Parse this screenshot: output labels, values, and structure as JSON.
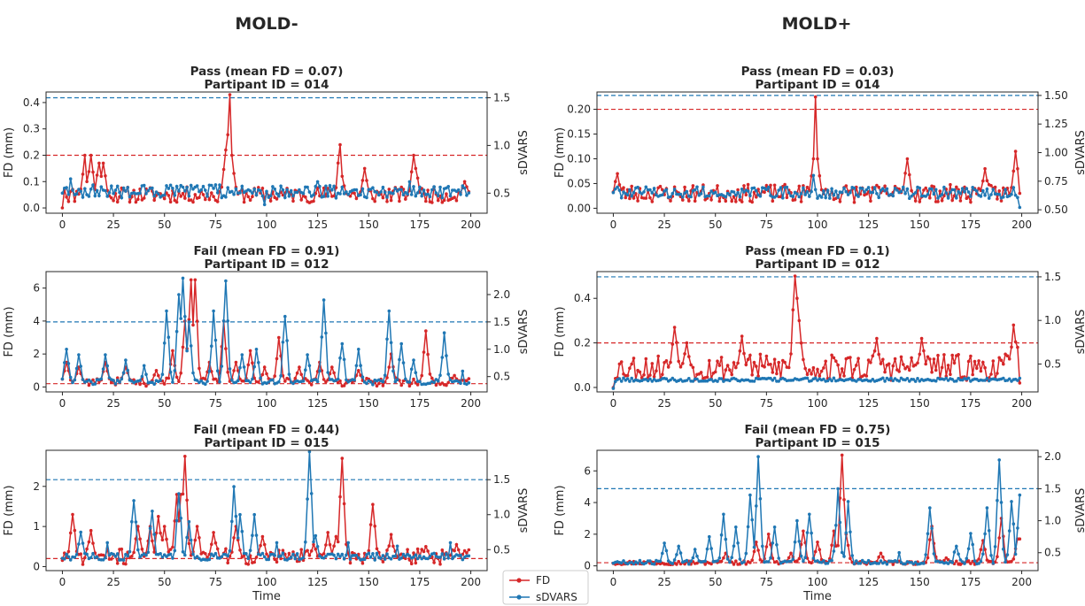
{
  "columns": [
    "MOLD-",
    "MOLD+"
  ],
  "legend": {
    "fd": "FD",
    "sdvars": "sDVARS",
    "fd_color": "#d62728",
    "sdvars_color": "#1f77b4"
  },
  "chart_data": [
    {
      "type": "line",
      "col": 0,
      "row": 0,
      "title": [
        "Pass (mean FD = 0.07)",
        "Partipant ID = 014"
      ],
      "xlabel": "",
      "ylabel": "FD (mm)",
      "y2label": "sDVARS",
      "xlim": [
        -8,
        208
      ],
      "ylim": [
        -0.02,
        0.44
      ],
      "y2lim": [
        0.29,
        1.56
      ],
      "xticks": [
        0,
        25,
        50,
        75,
        100,
        125,
        150,
        175,
        200
      ],
      "yticks": [
        0.0,
        0.1,
        0.2,
        0.3,
        0.4
      ],
      "yticklabels": [
        "0.0",
        "0.1",
        "0.2",
        "0.3",
        "0.4"
      ],
      "y2ticks": [
        0.5,
        1.0,
        1.5
      ],
      "y2ticklabels": [
        "0.5",
        "1.0",
        "1.5"
      ],
      "fd_threshold": 0.2,
      "sdvars_threshold": 1.5,
      "fd_peaks": [
        [
          0,
          0.0
        ],
        [
          1,
          0.07
        ],
        [
          11,
          0.2
        ],
        [
          12,
          0.1
        ],
        [
          14,
          0.2
        ],
        [
          18,
          0.17
        ],
        [
          20,
          0.17
        ],
        [
          80,
          0.22
        ],
        [
          82,
          0.43
        ],
        [
          83,
          0.2
        ],
        [
          136,
          0.24
        ],
        [
          137,
          0.12
        ],
        [
          148,
          0.15
        ],
        [
          172,
          0.2
        ],
        [
          173,
          0.15
        ],
        [
          197,
          0.1
        ],
        [
          198,
          0.08
        ]
      ],
      "fd_base": 0.05,
      "fd_noise": 0.03,
      "sdvars_peaks": [
        [
          0,
          0.5
        ],
        [
          4,
          0.65
        ],
        [
          99,
          0.38
        ],
        [
          125,
          0.62
        ],
        [
          170,
          0.62
        ]
      ],
      "sdvars_base": 0.52,
      "sdvars_noise": 0.07,
      "seed": 11
    },
    {
      "type": "line",
      "col": 1,
      "row": 0,
      "title": [
        "Pass (mean FD = 0.03)",
        "Partipant ID = 014"
      ],
      "xlabel": "",
      "ylabel": "FD (mm)",
      "y2label": "sDVARS",
      "xlim": [
        -8,
        208
      ],
      "ylim": [
        -0.01,
        0.235
      ],
      "y2lim": [
        0.47,
        1.53
      ],
      "xticks": [
        0,
        25,
        50,
        75,
        100,
        125,
        150,
        175,
        200
      ],
      "yticks": [
        0.0,
        0.05,
        0.1,
        0.15,
        0.2
      ],
      "yticklabels": [
        "0.00",
        "0.05",
        "0.10",
        "0.15",
        "0.20"
      ],
      "y2ticks": [
        0.5,
        0.75,
        1.0,
        1.25,
        1.5
      ],
      "y2ticklabels": [
        "0.50",
        "0.75",
        "1.00",
        "1.25",
        "1.50"
      ],
      "fd_threshold": 0.2,
      "sdvars_threshold": 1.5,
      "fd_peaks": [
        [
          0,
          0.0
        ],
        [
          2,
          0.07
        ],
        [
          99,
          0.225
        ],
        [
          98,
          0.1
        ],
        [
          100,
          0.1
        ],
        [
          144,
          0.1
        ],
        [
          182,
          0.08
        ],
        [
          197,
          0.115
        ],
        [
          198,
          0.08
        ],
        [
          199,
          0.03
        ]
      ],
      "fd_base": 0.03,
      "fd_noise": 0.018,
      "sdvars_peaks": [
        [
          0,
          0.65
        ],
        [
          98,
          0.8
        ],
        [
          199,
          0.52
        ]
      ],
      "sdvars_base": 0.65,
      "sdvars_noise": 0.05,
      "seed": 23
    },
    {
      "type": "line",
      "col": 0,
      "row": 1,
      "title": [
        "Fail (mean FD = 0.91)",
        "Partipant ID = 012"
      ],
      "xlabel": "",
      "ylabel": "FD (mm)",
      "y2label": "sDVARS",
      "xlim": [
        -8,
        208
      ],
      "ylim": [
        -0.3,
        7.0
      ],
      "y2lim": [
        0.22,
        2.42
      ],
      "xticks": [
        0,
        25,
        50,
        75,
        100,
        125,
        150,
        175,
        200
      ],
      "yticks": [
        0,
        2,
        4,
        6
      ],
      "yticklabels": [
        "0",
        "2",
        "4",
        "6"
      ],
      "y2ticks": [
        0.5,
        1.0,
        1.5,
        2.0
      ],
      "y2ticklabels": [
        "0.5",
        "1.0",
        "1.5",
        "2.0"
      ],
      "fd_threshold": 0.2,
      "sdvars_threshold": 1.5,
      "fd_peaks": [
        [
          2,
          1.5
        ],
        [
          8,
          1.2
        ],
        [
          21,
          1.5
        ],
        [
          31,
          1.2
        ],
        [
          46,
          1.0
        ],
        [
          54,
          2.2
        ],
        [
          60,
          4.0
        ],
        [
          63,
          6.5
        ],
        [
          65,
          6.5
        ],
        [
          72,
          1.5
        ],
        [
          79,
          4.0
        ],
        [
          85,
          1.5
        ],
        [
          92,
          2.2
        ],
        [
          99,
          1.2
        ],
        [
          106,
          3.0
        ],
        [
          116,
          1.2
        ],
        [
          126,
          1.5
        ],
        [
          132,
          1.2
        ],
        [
          145,
          1.0
        ],
        [
          161,
          2.0
        ],
        [
          178,
          3.4
        ],
        [
          192,
          0.7
        ],
        [
          199,
          0.5
        ]
      ],
      "fd_base": 0.3,
      "fd_noise": 0.25,
      "sdvars_peaks": [
        [
          2,
          1.0
        ],
        [
          8,
          0.9
        ],
        [
          21,
          0.9
        ],
        [
          31,
          0.8
        ],
        [
          40,
          0.7
        ],
        [
          51,
          1.7
        ],
        [
          57,
          2.0
        ],
        [
          59,
          2.3
        ],
        [
          62,
          1.5
        ],
        [
          74,
          1.7
        ],
        [
          80,
          2.25
        ],
        [
          88,
          0.9
        ],
        [
          95,
          1.0
        ],
        [
          109,
          1.6
        ],
        [
          120,
          0.9
        ],
        [
          128,
          1.9
        ],
        [
          137,
          1.1
        ],
        [
          145,
          1.0
        ],
        [
          160,
          1.7
        ],
        [
          166,
          1.1
        ],
        [
          172,
          0.8
        ],
        [
          187,
          1.3
        ],
        [
          196,
          0.6
        ]
      ],
      "sdvars_base": 0.4,
      "sdvars_noise": 0.05,
      "seed": 37
    },
    {
      "type": "line",
      "col": 1,
      "row": 1,
      "title": [
        "Pass (mean FD = 0.1)",
        "Partipant ID = 012"
      ],
      "xlabel": "",
      "ylabel": "FD (mm)",
      "y2label": "sDVARS",
      "xlim": [
        -8,
        208
      ],
      "ylim": [
        -0.02,
        0.52
      ],
      "y2lim": [
        0.18,
        1.56
      ],
      "xticks": [
        0,
        25,
        50,
        75,
        100,
        125,
        150,
        175,
        200
      ],
      "yticks": [
        0.0,
        0.2,
        0.4
      ],
      "yticklabels": [
        "0.0",
        "0.2",
        "0.4"
      ],
      "y2ticks": [
        0.5,
        1.0,
        1.5
      ],
      "y2ticklabels": [
        "0.5",
        "1.0",
        "1.5"
      ],
      "fd_threshold": 0.2,
      "sdvars_threshold": 1.5,
      "fd_peaks": [
        [
          0,
          0.0
        ],
        [
          30,
          0.27
        ],
        [
          36,
          0.2
        ],
        [
          63,
          0.23
        ],
        [
          89,
          0.5
        ],
        [
          90,
          0.4
        ],
        [
          91,
          0.3
        ],
        [
          129,
          0.22
        ],
        [
          151,
          0.22
        ],
        [
          196,
          0.28
        ],
        [
          198,
          0.18
        ],
        [
          199,
          0.02
        ]
      ],
      "fd_base": 0.09,
      "fd_noise": 0.06,
      "sdvars_peaks": [
        [
          0,
          0.22
        ],
        [
          1,
          0.3
        ]
      ],
      "sdvars_base": 0.32,
      "sdvars_noise": 0.02,
      "seed": 53
    },
    {
      "type": "line",
      "col": 0,
      "row": 2,
      "title": [
        "Fail (mean FD = 0.44)",
        "Partipant ID = 015"
      ],
      "xlabel": "Time",
      "ylabel": "FD (mm)",
      "y2label": "sDVARS",
      "xlim": [
        -8,
        208
      ],
      "ylim": [
        -0.1,
        2.9
      ],
      "y2lim": [
        0.2,
        1.92
      ],
      "xticks": [
        0,
        25,
        50,
        75,
        100,
        125,
        150,
        175,
        200
      ],
      "yticks": [
        0,
        1,
        2
      ],
      "yticklabels": [
        "0",
        "1",
        "2"
      ],
      "y2ticks": [
        0.5,
        1.0,
        1.5
      ],
      "y2ticklabels": [
        "0.5",
        "1.0",
        "1.5"
      ],
      "fd_threshold": 0.2,
      "sdvars_threshold": 1.5,
      "fd_peaks": [
        [
          5,
          1.3
        ],
        [
          14,
          0.9
        ],
        [
          37,
          1.0
        ],
        [
          43,
          1.0
        ],
        [
          47,
          1.25
        ],
        [
          50,
          1.0
        ],
        [
          56,
          1.8
        ],
        [
          58,
          1.8
        ],
        [
          60,
          2.75
        ],
        [
          66,
          1.0
        ],
        [
          74,
          0.85
        ],
        [
          85,
          1.0
        ],
        [
          98,
          0.75
        ],
        [
          123,
          0.55
        ],
        [
          130,
          0.85
        ],
        [
          134,
          0.75
        ],
        [
          137,
          2.7
        ],
        [
          152,
          1.55
        ],
        [
          161,
          0.8
        ],
        [
          178,
          0.5
        ],
        [
          193,
          0.55
        ]
      ],
      "fd_base": 0.25,
      "fd_noise": 0.2,
      "sdvars_peaks": [
        [
          9,
          0.75
        ],
        [
          22,
          0.6
        ],
        [
          35,
          1.2
        ],
        [
          44,
          1.05
        ],
        [
          57,
          1.3
        ],
        [
          62,
          0.9
        ],
        [
          84,
          1.4
        ],
        [
          87,
          1.0
        ],
        [
          94,
          1.0
        ],
        [
          105,
          0.6
        ],
        [
          121,
          1.9
        ],
        [
          124,
          0.7
        ],
        [
          140,
          0.6
        ],
        [
          164,
          0.55
        ],
        [
          190,
          0.6
        ]
      ],
      "sdvars_base": 0.4,
      "sdvars_noise": 0.05,
      "seed": 71
    },
    {
      "type": "line",
      "col": 1,
      "row": 2,
      "title": [
        "Fail (mean FD = 0.75)",
        "Partipant ID = 015"
      ],
      "xlabel": "Time",
      "ylabel": "FD (mm)",
      "y2label": "sDVARS",
      "xlim": [
        -8,
        208
      ],
      "ylim": [
        -0.3,
        7.3
      ],
      "y2lim": [
        0.22,
        2.1
      ],
      "xticks": [
        0,
        25,
        50,
        75,
        100,
        125,
        150,
        175,
        200
      ],
      "yticks": [
        0,
        2,
        4,
        6
      ],
      "yticklabels": [
        "0",
        "2",
        "4",
        "6"
      ],
      "y2ticks": [
        0.5,
        1.0,
        1.5,
        2.0
      ],
      "y2ticklabels": [
        "0.5",
        "1.0",
        "1.5",
        "2.0"
      ],
      "fd_threshold": 0.2,
      "sdvars_threshold": 1.5,
      "fd_peaks": [
        [
          55,
          0.8
        ],
        [
          70,
          1.5
        ],
        [
          76,
          2.0
        ],
        [
          87,
          0.8
        ],
        [
          93,
          2.2
        ],
        [
          100,
          1.5
        ],
        [
          108,
          2.2
        ],
        [
          112,
          7.0
        ],
        [
          114,
          2.0
        ],
        [
          131,
          0.8
        ],
        [
          156,
          2.5
        ],
        [
          163,
          0.5
        ],
        [
          181,
          1.6
        ],
        [
          190,
          3.0
        ],
        [
          196,
          0.4
        ],
        [
          198,
          1.7
        ],
        [
          199,
          1.7
        ]
      ],
      "fd_base": 0.2,
      "fd_noise": 0.12,
      "sdvars_peaks": [
        [
          25,
          0.65
        ],
        [
          32,
          0.6
        ],
        [
          40,
          0.55
        ],
        [
          47,
          0.75
        ],
        [
          54,
          1.1
        ],
        [
          60,
          0.9
        ],
        [
          67,
          1.4
        ],
        [
          71,
          2.0
        ],
        [
          79,
          0.9
        ],
        [
          90,
          1.0
        ],
        [
          96,
          1.1
        ],
        [
          110,
          1.5
        ],
        [
          115,
          1.3
        ],
        [
          140,
          0.5
        ],
        [
          155,
          1.2
        ],
        [
          168,
          0.6
        ],
        [
          175,
          0.8
        ],
        [
          183,
          1.2
        ],
        [
          189,
          1.95
        ],
        [
          195,
          1.3
        ],
        [
          199,
          1.4
        ]
      ],
      "sdvars_base": 0.35,
      "sdvars_noise": 0.03,
      "seed": 97
    }
  ]
}
